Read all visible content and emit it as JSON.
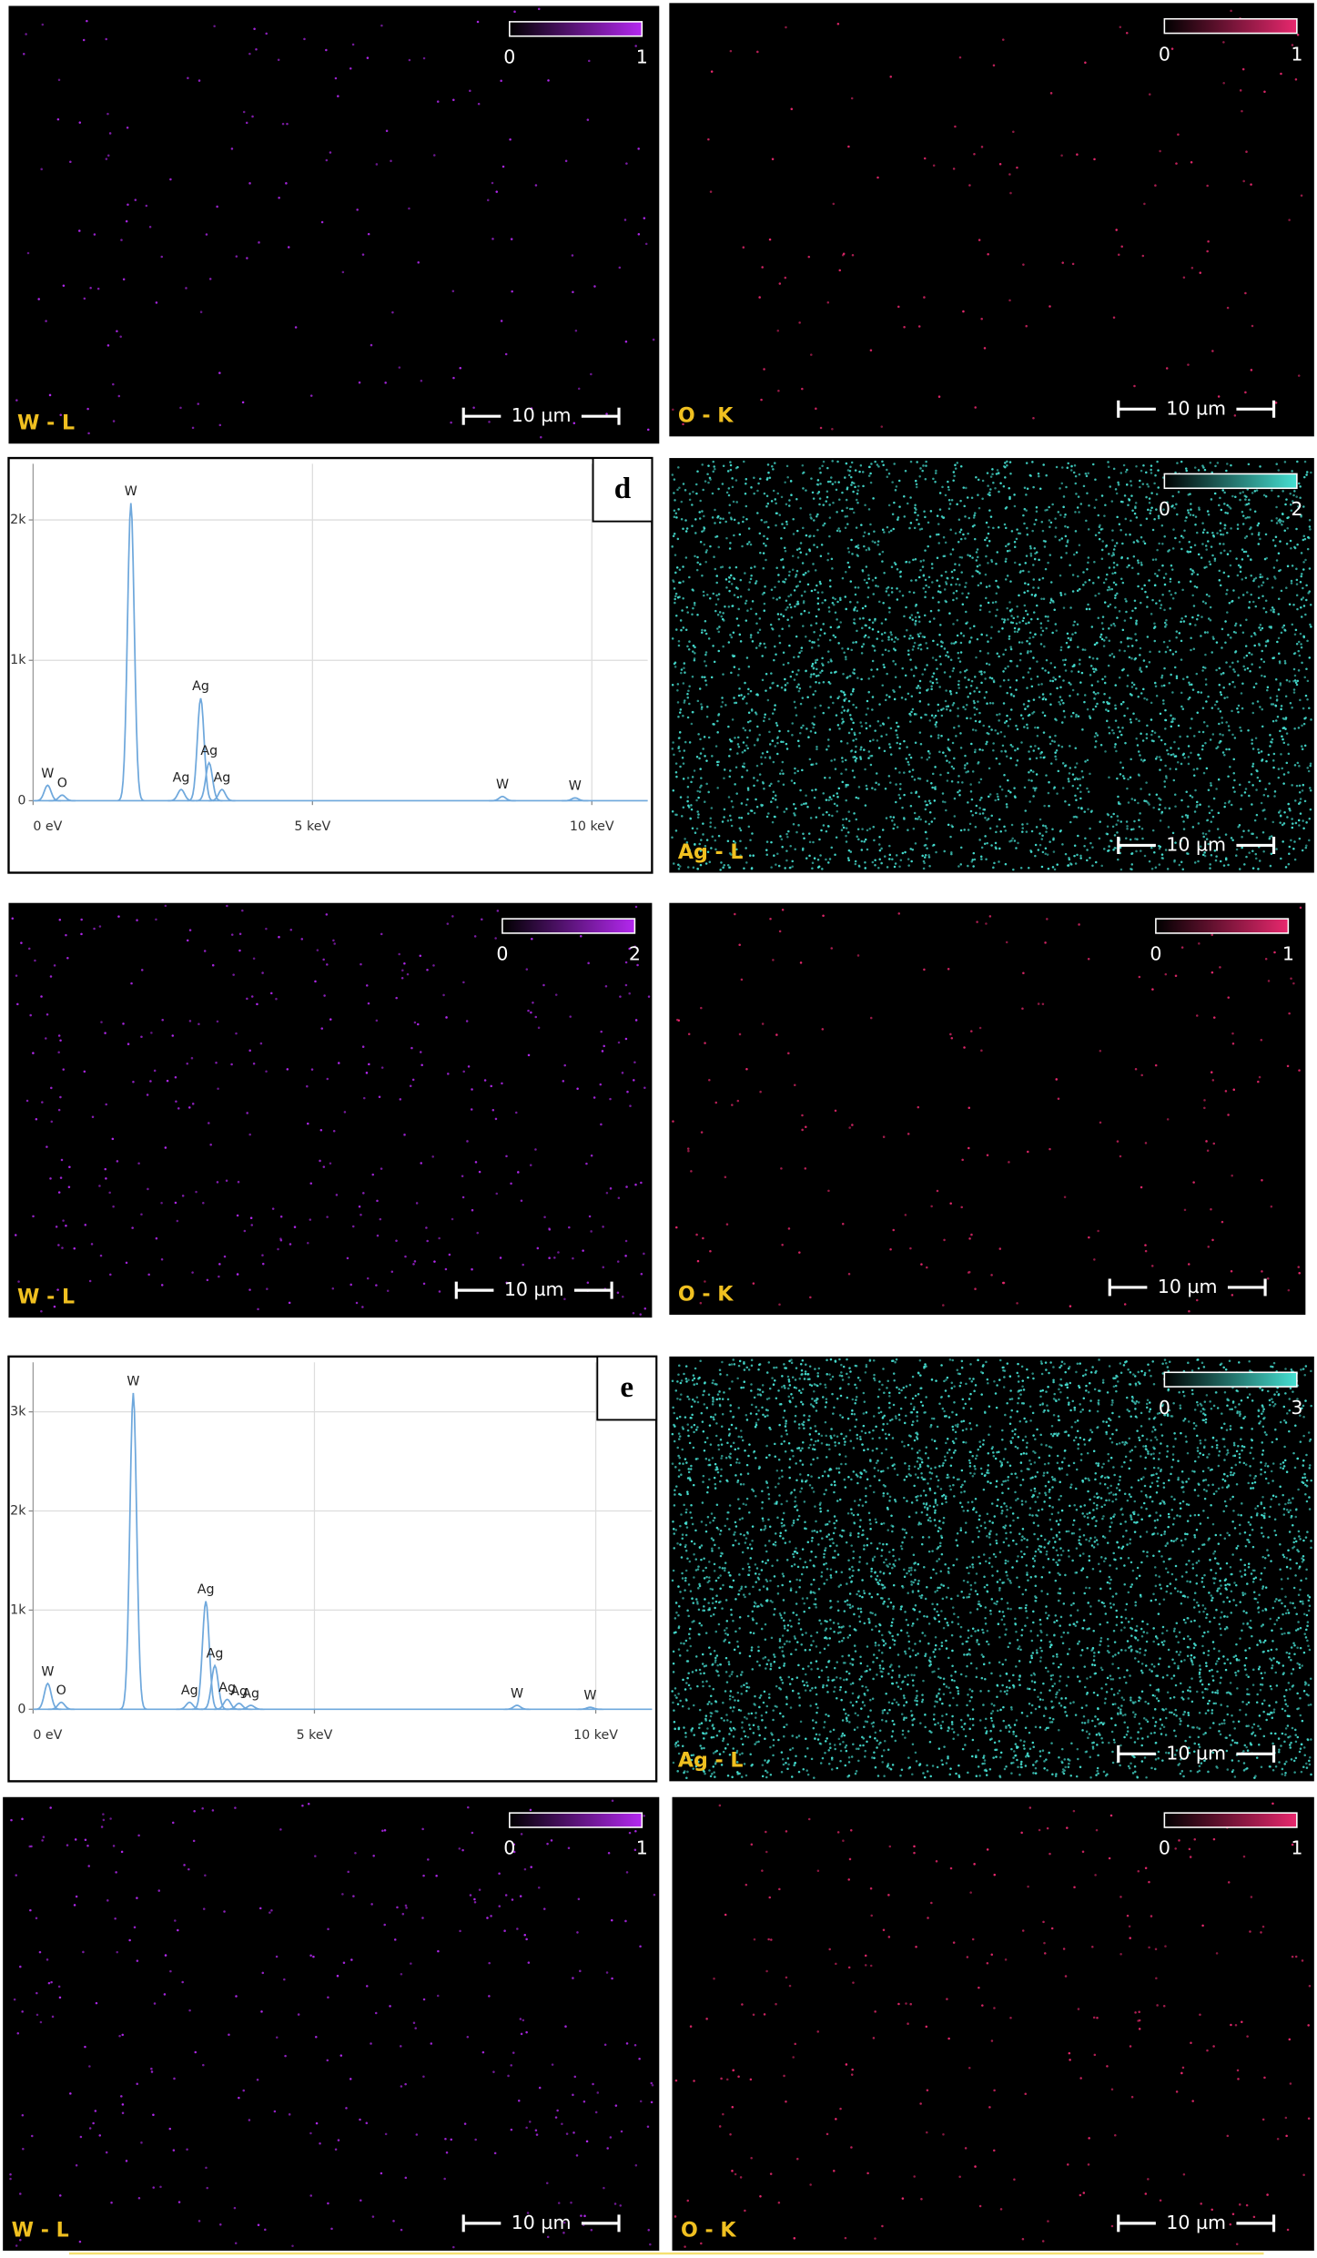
{
  "maps": [
    {
      "element": "W - L",
      "colorbar": {
        "min": 0,
        "max": 1
      },
      "scale_bar": "10 µm",
      "color": "#b428f0"
    },
    {
      "element": "O - K",
      "colorbar": {
        "min": 0,
        "max": 1
      },
      "scale_bar": "10 µm",
      "color": "#e8286e"
    },
    {
      "element": "Ag - L",
      "colorbar": {
        "min": 0,
        "max": 2
      },
      "scale_bar": "10 µm",
      "color": "#46e0d2"
    },
    {
      "element": "W - L",
      "colorbar": {
        "min": 0,
        "max": 2
      },
      "scale_bar": "10 µm",
      "color": "#b428f0"
    },
    {
      "element": "O - K",
      "colorbar": {
        "min": 0,
        "max": 1
      },
      "scale_bar": "10 µm",
      "color": "#e8286e"
    },
    {
      "element": "Ag - L",
      "colorbar": {
        "min": 0,
        "max": 3
      },
      "scale_bar": "10 µm",
      "color": "#46e0d2"
    },
    {
      "element": "W - L",
      "colorbar": {
        "min": 0,
        "max": 1
      },
      "scale_bar": "10 µm",
      "color": "#b428f0"
    },
    {
      "element": "O - K",
      "colorbar": {
        "min": 0,
        "max": 1
      },
      "scale_bar": "10 µm",
      "color": "#e8286e"
    }
  ],
  "spectra": [
    {
      "panel_label": "d",
      "xlim": [
        0,
        11
      ],
      "ylim": [
        0,
        2400
      ],
      "xticks": [
        {
          "value": 0,
          "label": "0 eV"
        },
        {
          "value": 5,
          "label": "5 keV"
        },
        {
          "value": 10,
          "label": "10 keV"
        }
      ],
      "yticks": [
        0,
        {
          "value": 1000,
          "label": "1k"
        },
        {
          "value": 2000,
          "label": "2k"
        }
      ],
      "peaks": [
        {
          "label": "W",
          "x": 0.26,
          "y": 110
        },
        {
          "label": "O",
          "x": 0.52,
          "y": 40
        },
        {
          "label": "W",
          "x": 1.75,
          "y": 2120
        },
        {
          "label": "Ag",
          "x": 2.65,
          "y": 80
        },
        {
          "label": "Ag",
          "x": 3.0,
          "y": 730
        },
        {
          "label": "Ag",
          "x": 3.15,
          "y": 270
        },
        {
          "label": "Ag",
          "x": 3.38,
          "y": 80
        },
        {
          "label": "W",
          "x": 8.4,
          "y": 30
        },
        {
          "label": "W",
          "x": 9.7,
          "y": 20
        }
      ]
    },
    {
      "panel_label": "e",
      "xlim": [
        0,
        11
      ],
      "ylim": [
        0,
        3500
      ],
      "xticks": [
        {
          "value": 0,
          "label": "0 eV"
        },
        {
          "value": 5,
          "label": "5 keV"
        },
        {
          "value": 10,
          "label": "10 keV"
        }
      ],
      "yticks": [
        0,
        {
          "value": 1000,
          "label": "1k"
        },
        {
          "value": 2000,
          "label": "2k"
        },
        {
          "value": 3000,
          "label": "3k"
        }
      ],
      "peaks": [
        {
          "label": "W",
          "x": 0.26,
          "y": 260
        },
        {
          "label": "O",
          "x": 0.5,
          "y": 70
        },
        {
          "label": "W",
          "x": 1.78,
          "y": 3190
        },
        {
          "label": "Ag",
          "x": 2.78,
          "y": 70
        },
        {
          "label": "Ag",
          "x": 3.07,
          "y": 1090
        },
        {
          "label": "Ag",
          "x": 3.23,
          "y": 440
        },
        {
          "label": "Ag",
          "x": 3.45,
          "y": 100
        },
        {
          "label": "Ag",
          "x": 3.66,
          "y": 60
        },
        {
          "label": "Ag",
          "x": 3.87,
          "y": 40
        },
        {
          "label": "W",
          "x": 8.6,
          "y": 40
        },
        {
          "label": "W",
          "x": 9.9,
          "y": 20
        }
      ]
    }
  ]
}
